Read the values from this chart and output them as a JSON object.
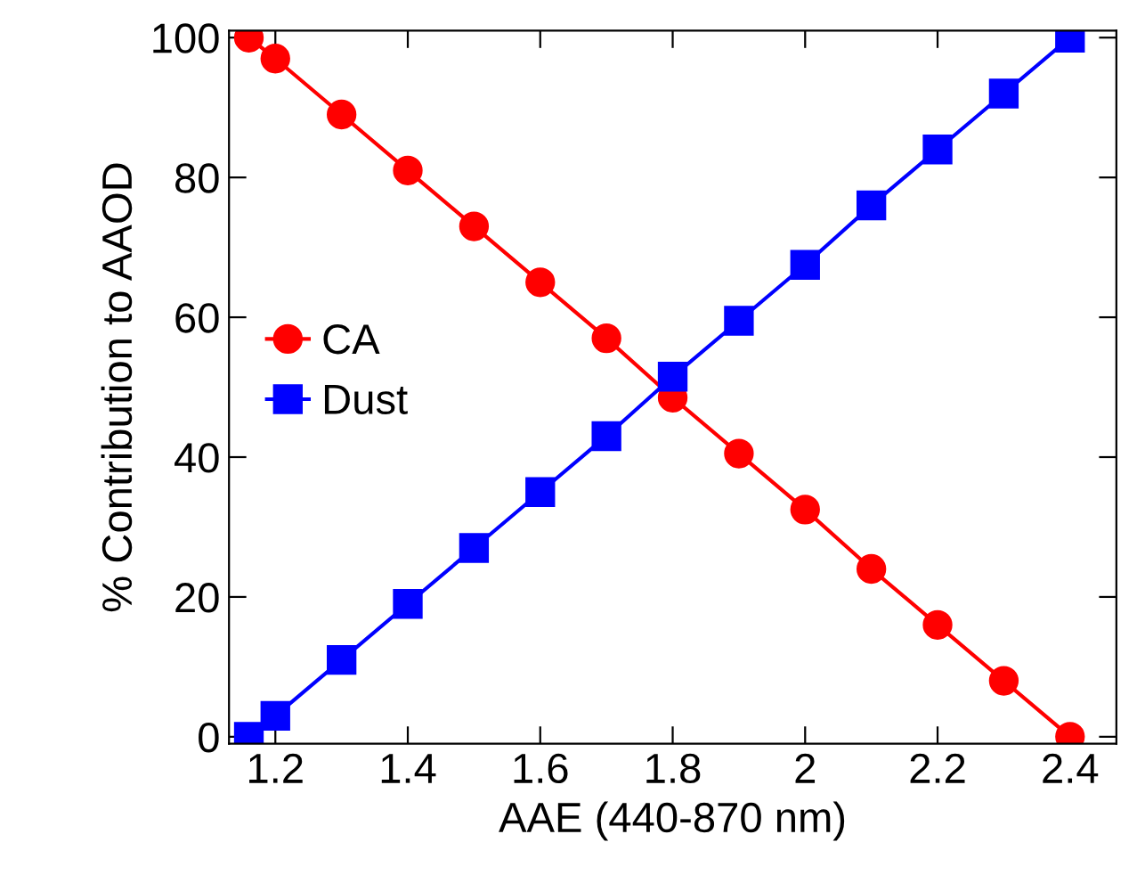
{
  "chart_data": {
    "type": "line",
    "xlabel": "AAE (440-870 nm)",
    "ylabel": "% Contribution to AAOD",
    "x": [
      1.16,
      1.2,
      1.3,
      1.4,
      1.5,
      1.6,
      1.7,
      1.8,
      1.9,
      2.0,
      2.1,
      2.2,
      2.3,
      2.4
    ],
    "series": [
      {
        "name": "CA",
        "color": "#ff0000",
        "marker": "circle",
        "values": [
          100,
          97,
          89,
          81,
          73,
          65,
          57,
          48.5,
          40.5,
          32.5,
          24,
          16,
          8,
          0
        ]
      },
      {
        "name": "Dust",
        "color": "#0000ff",
        "marker": "square",
        "values": [
          0,
          3,
          11,
          19,
          27,
          35,
          43,
          51.5,
          59.5,
          67.5,
          76,
          84,
          92,
          100
        ]
      }
    ],
    "xlim": [
      1.13,
      2.47
    ],
    "ylim": [
      -1,
      101
    ],
    "xticks": [
      {
        "value": 1.2,
        "label": "1.2"
      },
      {
        "value": 1.4,
        "label": "1.4"
      },
      {
        "value": 1.6,
        "label": "1.6"
      },
      {
        "value": 1.8,
        "label": "1.8"
      },
      {
        "value": 2.0,
        "label": "2"
      },
      {
        "value": 2.2,
        "label": "2.2"
      },
      {
        "value": 2.4,
        "label": "2.4"
      }
    ],
    "yticks": [
      0,
      20,
      40,
      60,
      80,
      100
    ],
    "legend": "left",
    "grid": false,
    "line_style": "solid"
  }
}
